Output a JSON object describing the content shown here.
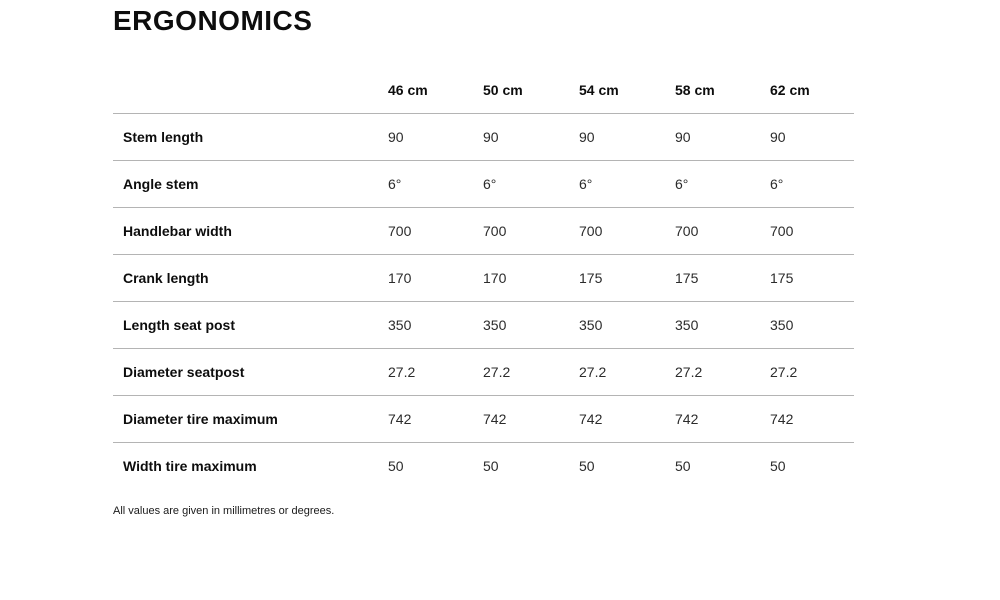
{
  "section": {
    "title": "ERGONOMICS",
    "footnote": "All values are given in millimetres or degrees."
  },
  "table": {
    "columns": [
      "46 cm",
      "50 cm",
      "54 cm",
      "58 cm",
      "62 cm"
    ],
    "rows": [
      {
        "label": "Stem length",
        "values": [
          "90",
          "90",
          "90",
          "90",
          "90"
        ]
      },
      {
        "label": "Angle stem",
        "values": [
          "6°",
          "6°",
          "6°",
          "6°",
          "6°"
        ]
      },
      {
        "label": "Handlebar width",
        "values": [
          "700",
          "700",
          "700",
          "700",
          "700"
        ]
      },
      {
        "label": "Crank length",
        "values": [
          "170",
          "170",
          "175",
          "175",
          "175"
        ]
      },
      {
        "label": "Length seat post",
        "values": [
          "350",
          "350",
          "350",
          "350",
          "350"
        ]
      },
      {
        "label": "Diameter seatpost",
        "values": [
          "27.2",
          "27.2",
          "27.2",
          "27.2",
          "27.2"
        ]
      },
      {
        "label": "Diameter tire maximum",
        "values": [
          "742",
          "742",
          "742",
          "742",
          "742"
        ]
      },
      {
        "label": "Width tire maximum",
        "values": [
          "50",
          "50",
          "50",
          "50",
          "50"
        ]
      }
    ]
  },
  "colors": {
    "divider": "#b4b4b4",
    "heading_text": "#0d0d0d",
    "value_text": "#2b2b2b",
    "background": "#ffffff"
  }
}
